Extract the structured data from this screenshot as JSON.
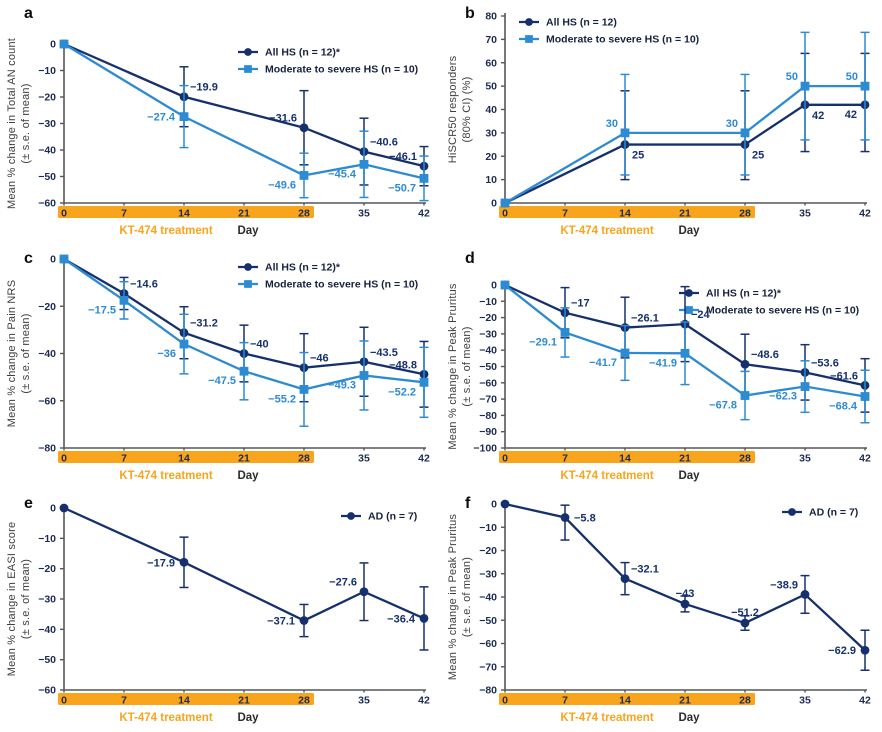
{
  "colors": {
    "navy": "#15306c",
    "light_blue": "#2d8bd2",
    "orange": "#f8a41c",
    "axis_line": "#55565a",
    "tick_label": "#1d2b52",
    "axis_title": "#3f3f41",
    "day_label": "#2b2b2b",
    "legend_text": "#15213e"
  },
  "chart_data": [
    {
      "type": "line",
      "letter": "a",
      "ylabel_line1": "Mean % change in Total AN count",
      "ylabel_line2": "(± s.e. of mean)",
      "ylim": [
        -60,
        0
      ],
      "ytick_step": 10,
      "x_ticks": [
        0,
        7,
        14,
        21,
        28,
        35,
        42
      ],
      "xlabel": "Day",
      "treatment": {
        "label": "KT-474 treatment",
        "span": [
          0,
          28
        ]
      },
      "legend_position": "top-right",
      "series": [
        {
          "name": "All HS (n = 12)*",
          "color": "navy",
          "marker": "circle",
          "points": [
            {
              "x": 0,
              "y": 0
            },
            {
              "x": 14,
              "y": -19.9,
              "err": 11.3,
              "label": "−19.9",
              "lpos": "ra"
            },
            {
              "x": 28,
              "y": -31.6,
              "err": 14.0,
              "label": "−31.6",
              "lpos": "la"
            },
            {
              "x": 35,
              "y": -40.6,
              "err": 12.6,
              "label": "−40.6",
              "lpos": "ra"
            },
            {
              "x": 42,
              "y": -46.1,
              "err": 7.4,
              "label": "−46.1",
              "lpos": "la"
            }
          ]
        },
        {
          "name": "Moderate to severe HS (n = 10)",
          "color": "light_blue",
          "marker": "square",
          "points": [
            {
              "x": 0,
              "y": 0
            },
            {
              "x": 14,
              "y": -27.4,
              "err": 11.7,
              "label": "−27.4",
              "lpos": "l"
            },
            {
              "x": 28,
              "y": -49.6,
              "err": 8.4,
              "label": "−49.6",
              "lpos": "lb"
            },
            {
              "x": 35,
              "y": -45.4,
              "err": 12.5,
              "label": "−45.4",
              "lpos": "lb"
            },
            {
              "x": 42,
              "y": -50.7,
              "err": 8.4,
              "label": "−50.7",
              "lpos": "lb"
            }
          ]
        }
      ]
    },
    {
      "type": "line",
      "letter": "b",
      "ylabel_line1": "HiSCR50 responders",
      "ylabel_line2": "(80% CI) (%)",
      "ylim": [
        0,
        80
      ],
      "ytick_step": 10,
      "x_ticks": [
        0,
        7,
        14,
        21,
        28,
        35,
        42
      ],
      "xlabel": "Day",
      "treatment": {
        "label": "KT-474 treatment",
        "span": [
          0,
          28
        ]
      },
      "legend_position": "top-left",
      "series": [
        {
          "name": "All HS (n = 12)",
          "color": "navy",
          "marker": "circle",
          "points": [
            {
              "x": 0,
              "y": 0
            },
            {
              "x": 14,
              "y": 25,
              "err": [
                15,
                23
              ],
              "label": "25",
              "lpos": "rb"
            },
            {
              "x": 28,
              "y": 25,
              "err": [
                15,
                23
              ],
              "label": "25",
              "lpos": "rb"
            },
            {
              "x": 35,
              "y": 42,
              "err": [
                20,
                22
              ],
              "label": "42",
              "lpos": "rb"
            },
            {
              "x": 42,
              "y": 42,
              "err": [
                20,
                22
              ],
              "label": "42",
              "lpos": "lb"
            }
          ]
        },
        {
          "name": "Moderate to severe HS (n = 10)",
          "color": "light_blue",
          "marker": "square",
          "points": [
            {
              "x": 0,
              "y": 0
            },
            {
              "x": 14,
              "y": 30,
              "err": [
                18,
                25
              ],
              "label": "30",
              "lpos": "la"
            },
            {
              "x": 28,
              "y": 30,
              "err": [
                18,
                25
              ],
              "label": "30",
              "lpos": "la"
            },
            {
              "x": 35,
              "y": 50,
              "err": [
                23,
                23
              ],
              "label": "50",
              "lpos": "la"
            },
            {
              "x": 42,
              "y": 50,
              "err": [
                23,
                23
              ],
              "label": "50",
              "lpos": "la"
            }
          ]
        }
      ]
    },
    {
      "type": "line",
      "letter": "c",
      "ylabel_line1": "Mean % change in Pain NRS",
      "ylabel_line2": "(± s.e. of mean)",
      "ylim": [
        -80,
        0
      ],
      "ytick_step": 20,
      "x_ticks": [
        0,
        7,
        14,
        21,
        28,
        35,
        42
      ],
      "xlabel": "Day",
      "treatment": {
        "label": "KT-474 treatment",
        "span": [
          0,
          28
        ]
      },
      "legend_position": "top-right",
      "series": [
        {
          "name": "All HS (n = 12)*",
          "color": "navy",
          "marker": "circle",
          "points": [
            {
              "x": 0,
              "y": 0
            },
            {
              "x": 7,
              "y": -14.6,
              "err": 6.8,
              "label": "−14.6",
              "lpos": "ra"
            },
            {
              "x": 14,
              "y": -31.2,
              "err": 11.0,
              "label": "−31.2",
              "lpos": "ra"
            },
            {
              "x": 21,
              "y": -40,
              "err": 12.0,
              "label": "−40",
              "lpos": "ra"
            },
            {
              "x": 28,
              "y": -46,
              "err": 14.4,
              "label": "−46",
              "lpos": "ra"
            },
            {
              "x": 35,
              "y": -43.5,
              "err": 14.6,
              "label": "−43.5",
              "lpos": "ra"
            },
            {
              "x": 42,
              "y": -48.8,
              "err": 13.9,
              "label": "−48.8",
              "lpos": "la"
            }
          ]
        },
        {
          "name": "Moderate to severe HS (n = 10)",
          "color": "light_blue",
          "marker": "square",
          "points": [
            {
              "x": 0,
              "y": 0
            },
            {
              "x": 7,
              "y": -17.5,
              "err": 7.9,
              "label": "−17.5",
              "lpos": "lb"
            },
            {
              "x": 14,
              "y": -36,
              "err": 12.6,
              "label": "−36",
              "lpos": "lb"
            },
            {
              "x": 21,
              "y": -47.5,
              "err": 12.1,
              "label": "−47.5",
              "lpos": "lb"
            },
            {
              "x": 28,
              "y": -55.2,
              "err": 15.6,
              "label": "−55.2",
              "lpos": "lb"
            },
            {
              "x": 35,
              "y": -49.3,
              "err": 14.6,
              "label": "−49.3",
              "lpos": "lb"
            },
            {
              "x": 42,
              "y": -52.2,
              "err": 14.8,
              "label": "−52.2",
              "lpos": "lb"
            }
          ]
        }
      ]
    },
    {
      "type": "line",
      "letter": "d",
      "ylabel_line1": "Mean % change in Peak Pruritus",
      "ylabel_line2": "(± s.e. of mean)",
      "ylim": [
        -100,
        0
      ],
      "ytick_step": 10,
      "x_ticks": [
        0,
        7,
        14,
        21,
        28,
        35,
        42
      ],
      "xlabel": "Day",
      "treatment": {
        "label": "KT-474 treatment",
        "span": [
          0,
          28
        ]
      },
      "legend_position": "top-right",
      "series": [
        {
          "name": "All HS (n = 12)*",
          "color": "navy",
          "marker": "circle",
          "points": [
            {
              "x": 0,
              "y": 0
            },
            {
              "x": 7,
              "y": -17,
              "err": 15.4,
              "label": "−17",
              "lpos": "ra"
            },
            {
              "x": 14,
              "y": -26.1,
              "err": 18.6,
              "label": "−26.1",
              "lpos": "ra"
            },
            {
              "x": 21,
              "y": -24,
              "err": 23.0,
              "label": "−24",
              "lpos": "ra"
            },
            {
              "x": 28,
              "y": -48.6,
              "err": 18.4,
              "label": "−48.6",
              "lpos": "ra"
            },
            {
              "x": 35,
              "y": -53.6,
              "err": 17.0,
              "label": "−53.6",
              "lpos": "ra"
            },
            {
              "x": 42,
              "y": -61.6,
              "err": 16.4,
              "label": "−61.6",
              "lpos": "la"
            }
          ]
        },
        {
          "name": "Moderate to severe HS (n = 10)",
          "color": "light_blue",
          "marker": "square",
          "points": [
            {
              "x": 0,
              "y": 0
            },
            {
              "x": 7,
              "y": -29.1,
              "err": 15.1,
              "label": "−29.1",
              "lpos": "lb"
            },
            {
              "x": 14,
              "y": -41.7,
              "err": 16.8,
              "label": "−41.7",
              "lpos": "lb"
            },
            {
              "x": 21,
              "y": -41.9,
              "err": 19.2,
              "label": "−41.9",
              "lpos": "lb"
            },
            {
              "x": 28,
              "y": -67.8,
              "err": 14.8,
              "label": "−67.8",
              "lpos": "lb"
            },
            {
              "x": 35,
              "y": -62.3,
              "err": 15.8,
              "label": "−62.3",
              "lpos": "lb"
            },
            {
              "x": 42,
              "y": -68.4,
              "err": 16.1,
              "label": "−68.4",
              "lpos": "lb"
            }
          ]
        }
      ]
    },
    {
      "type": "line",
      "letter": "e",
      "ylabel_line1": "Mean % change in EASI score",
      "ylabel_line2": "(± s.e. of mean)",
      "ylim": [
        -60,
        0
      ],
      "ytick_step": 10,
      "x_ticks": [
        0,
        7,
        14,
        21,
        28,
        35,
        42
      ],
      "xlabel": "Day",
      "treatment": {
        "label": "KT-474 treatment",
        "span": [
          0,
          28
        ]
      },
      "legend_position": "top-right",
      "series": [
        {
          "name": "AD (n = 7)",
          "color": "navy",
          "marker": "circle",
          "points": [
            {
              "x": 0,
              "y": 0
            },
            {
              "x": 14,
              "y": -17.9,
              "err": 8.3,
              "label": "−17.9",
              "lpos": "l"
            },
            {
              "x": 28,
              "y": -37.1,
              "err": 5.3,
              "label": "−37.1",
              "lpos": "l"
            },
            {
              "x": 35,
              "y": -27.6,
              "err": 9.5,
              "label": "−27.6",
              "lpos": "la"
            },
            {
              "x": 42,
              "y": -36.4,
              "err": 10.4,
              "label": "−36.4",
              "lpos": "l"
            }
          ]
        }
      ]
    },
    {
      "type": "line",
      "letter": "f",
      "ylabel_line1": "Mean % change in Peak Pruritus",
      "ylabel_line2": "(± s.e. of mean)",
      "ylim": [
        -80,
        0
      ],
      "ytick_step": 10,
      "x_ticks": [
        0,
        7,
        14,
        21,
        28,
        35,
        42
      ],
      "xlabel": "Day",
      "treatment": {
        "label": "KT-474 treatment",
        "span": [
          0,
          28
        ]
      },
      "legend_position": "top-right",
      "series": [
        {
          "name": "AD (n = 7)",
          "color": "navy",
          "marker": "circle",
          "points": [
            {
              "x": 0,
              "y": 0
            },
            {
              "x": 7,
              "y": -5.8,
              "err": [
                9.7,
                5.3
              ],
              "label": "−5.8",
              "lpos": "r"
            },
            {
              "x": 14,
              "y": -32.1,
              "err": 6.9,
              "label": "−32.1",
              "lpos": "ra"
            },
            {
              "x": 21,
              "y": -43,
              "err": 3.4,
              "label": "−43",
              "lpos": "a"
            },
            {
              "x": 28,
              "y": -51.2,
              "err": 3.1,
              "label": "−51.2",
              "lpos": "a"
            },
            {
              "x": 35,
              "y": -38.9,
              "err": 8.1,
              "label": "−38.9",
              "lpos": "la"
            },
            {
              "x": 42,
              "y": -62.9,
              "err": 8.6,
              "label": "−62.9",
              "lpos": "l"
            }
          ]
        }
      ]
    }
  ]
}
